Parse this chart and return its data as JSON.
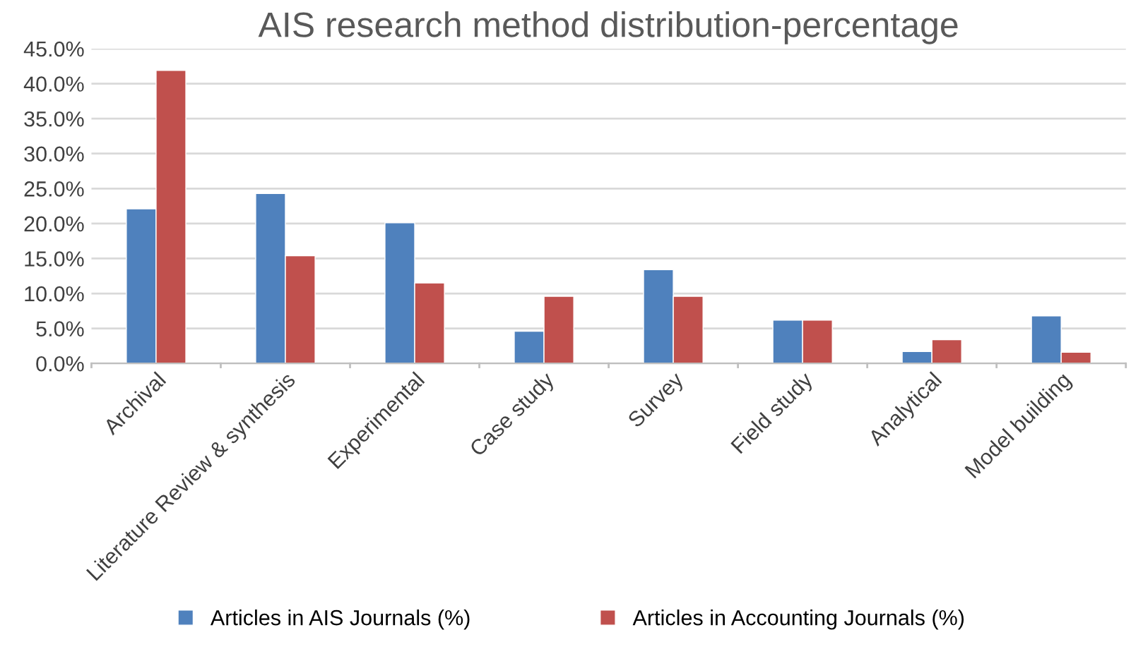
{
  "chart_data": {
    "type": "bar",
    "title": "AIS research method distribution-percentage",
    "categories": [
      "Archival",
      "Literature Review & synthesis",
      "Experimental",
      "Case study",
      "Survey",
      "Field study",
      "Analytical",
      "Model building"
    ],
    "series": [
      {
        "name": "Articles in AIS Journals (%)",
        "color": "#4f81bd",
        "values": [
          22.1,
          24.3,
          20.1,
          4.6,
          13.4,
          6.2,
          1.7,
          6.8
        ]
      },
      {
        "name": "Articles in Accounting Journals (%)",
        "color": "#c0504d",
        "values": [
          41.9,
          15.4,
          11.5,
          9.6,
          9.6,
          6.2,
          3.4,
          1.6
        ]
      }
    ],
    "ylim": [
      0,
      45
    ],
    "yticks": [
      {
        "value": 0,
        "label": "0.0%"
      },
      {
        "value": 5,
        "label": "5.0%"
      },
      {
        "value": 10,
        "label": "10.0%"
      },
      {
        "value": 15,
        "label": "15.0%"
      },
      {
        "value": 20,
        "label": "20.0%"
      },
      {
        "value": 25,
        "label": "25.0%"
      },
      {
        "value": 30,
        "label": "30.0%"
      },
      {
        "value": 35,
        "label": "35.0%"
      },
      {
        "value": 40,
        "label": "40.0%"
      },
      {
        "value": 45,
        "label": "45.0%"
      }
    ],
    "grid": "y",
    "legend": "bottom"
  }
}
